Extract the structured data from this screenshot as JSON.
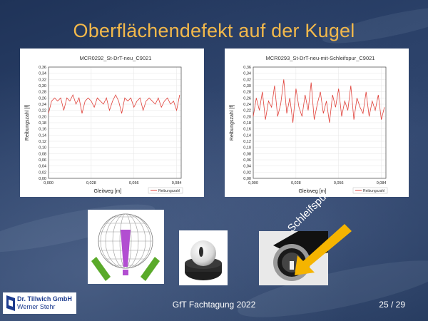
{
  "slide": {
    "title": "Oberflächendefekt auf der Kugel",
    "annotation": "Schleifspur",
    "footer": "GfT Fachtagung 2022",
    "page_number": "25 / 29",
    "logo": {
      "name": "Dr. Tillwich GmbH",
      "person": "Werner Stehr"
    },
    "colors": {
      "title": "#f2b84b",
      "series": "#e0413a",
      "arrow": "#f5b400",
      "logo_text": "#1d3c8f"
    }
  },
  "chart_data": [
    {
      "type": "line",
      "title": "MCR0292_St-DrT-neu_C9021",
      "xlabel": "Gleitweg [m]",
      "ylabel": "Reibungszahl [f]",
      "xlim": [
        0,
        0.087
      ],
      "ylim": [
        0,
        0.36
      ],
      "xticks": [
        "0,000",
        "0,028",
        "0,056",
        "0,084"
      ],
      "yticks": [
        "0,00",
        "0,02",
        "0,04",
        "0,06",
        "0,08",
        "0,10",
        "0,12",
        "0,14",
        "0,16",
        "0,18",
        "0,20",
        "0,22",
        "0,24",
        "0,26",
        "0,28",
        "0,30",
        "0,32",
        "0,34",
        "0,36"
      ],
      "grid": true,
      "legend_position": "bottom-right",
      "series": [
        {
          "name": "Reibungszahl",
          "x": [
            0.0,
            0.002,
            0.004,
            0.006,
            0.008,
            0.01,
            0.012,
            0.014,
            0.016,
            0.018,
            0.02,
            0.022,
            0.024,
            0.026,
            0.028,
            0.03,
            0.032,
            0.034,
            0.036,
            0.038,
            0.04,
            0.042,
            0.044,
            0.046,
            0.048,
            0.05,
            0.052,
            0.054,
            0.056,
            0.058,
            0.06,
            0.062,
            0.064,
            0.066,
            0.068,
            0.07,
            0.072,
            0.074,
            0.076,
            0.078,
            0.08,
            0.082,
            0.084,
            0.086
          ],
          "values": [
            0.21,
            0.25,
            0.26,
            0.25,
            0.26,
            0.22,
            0.26,
            0.25,
            0.27,
            0.24,
            0.26,
            0.21,
            0.25,
            0.26,
            0.25,
            0.23,
            0.26,
            0.25,
            0.24,
            0.26,
            0.22,
            0.25,
            0.27,
            0.25,
            0.21,
            0.26,
            0.25,
            0.26,
            0.23,
            0.25,
            0.26,
            0.22,
            0.25,
            0.26,
            0.25,
            0.24,
            0.26,
            0.23,
            0.25,
            0.26,
            0.24,
            0.25,
            0.22,
            0.27
          ]
        }
      ]
    },
    {
      "type": "line",
      "title": "MCR0293_St-DrT-neu-mit-Schleifspur_C9021",
      "xlabel": "Gleitweg [m]",
      "ylabel": "Reibungszahl [f]",
      "xlim": [
        0,
        0.087
      ],
      "ylim": [
        0,
        0.36
      ],
      "xticks": [
        "0,000",
        "0,028",
        "0,056",
        "0,084"
      ],
      "yticks": [
        "0,00",
        "0,02",
        "0,04",
        "0,06",
        "0,08",
        "0,10",
        "0,12",
        "0,14",
        "0,16",
        "0,18",
        "0,20",
        "0,22",
        "0,24",
        "0,26",
        "0,28",
        "0,30",
        "0,32",
        "0,34",
        "0,36"
      ],
      "grid": true,
      "legend_position": "bottom-right",
      "series": [
        {
          "name": "Reibungszahl",
          "x": [
            0.0,
            0.002,
            0.004,
            0.006,
            0.008,
            0.01,
            0.012,
            0.014,
            0.016,
            0.018,
            0.02,
            0.022,
            0.024,
            0.026,
            0.028,
            0.03,
            0.032,
            0.034,
            0.036,
            0.038,
            0.04,
            0.042,
            0.044,
            0.046,
            0.048,
            0.05,
            0.052,
            0.054,
            0.056,
            0.058,
            0.06,
            0.062,
            0.064,
            0.066,
            0.068,
            0.07,
            0.072,
            0.074,
            0.076,
            0.078,
            0.08,
            0.082,
            0.084,
            0.086
          ],
          "values": [
            0.2,
            0.26,
            0.22,
            0.28,
            0.19,
            0.25,
            0.23,
            0.3,
            0.2,
            0.24,
            0.32,
            0.21,
            0.26,
            0.18,
            0.29,
            0.23,
            0.2,
            0.27,
            0.22,
            0.31,
            0.19,
            0.24,
            0.28,
            0.21,
            0.25,
            0.18,
            0.27,
            0.23,
            0.29,
            0.2,
            0.25,
            0.22,
            0.3,
            0.19,
            0.26,
            0.23,
            0.21,
            0.28,
            0.2,
            0.25,
            0.22,
            0.27,
            0.19,
            0.23
          ]
        }
      ]
    }
  ]
}
